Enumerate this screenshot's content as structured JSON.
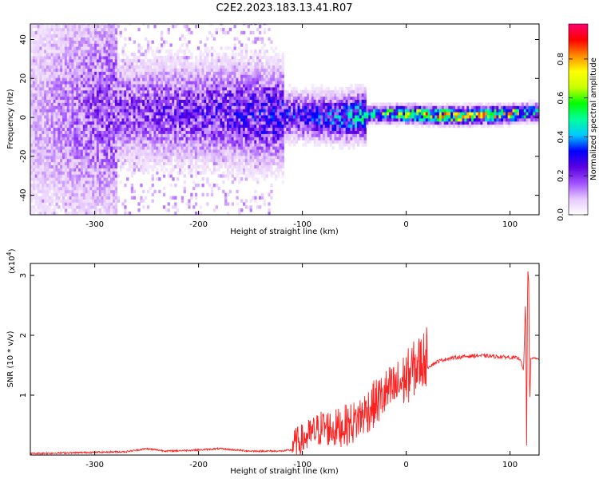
{
  "title": "C2E2.2023.183.13.41.R07",
  "spectrogram": {
    "type": "heatmap",
    "xlabel": "Height of straight line (km)",
    "ylabel": "Frequency (Hz)",
    "xlim": [
      -362,
      128
    ],
    "ylim": [
      -50,
      48
    ],
    "xticks": [
      -300,
      -200,
      -100,
      0,
      100
    ],
    "yticks": [
      -40,
      -20,
      0,
      20,
      40
    ],
    "colorbar": {
      "label": "Normalized spectral amplitude",
      "range": [
        0,
        0.98
      ],
      "ticks": [
        0.0,
        0.2,
        0.4,
        0.6,
        0.8
      ],
      "colors": [
        "#ffffff",
        "#e6c8ff",
        "#a050ff",
        "#5a00e0",
        "#0000ff",
        "#00c8ff",
        "#00ff9c",
        "#00ff00",
        "#c8ff00",
        "#ffff00",
        "#ff8c00",
        "#ff0000",
        "#ff0070"
      ]
    },
    "band": {
      "x": [
        -362,
        -300,
        -200,
        -100,
        -60,
        -30,
        0,
        50,
        100,
        128
      ],
      "center_hz": [
        0,
        3,
        2,
        0,
        -1,
        1,
        1,
        0,
        1,
        2
      ],
      "peak_amplitude": [
        0.1,
        0.2,
        0.25,
        0.32,
        0.4,
        0.55,
        0.75,
        0.85,
        0.7,
        0.5
      ]
    }
  },
  "chart_data": {
    "type": "line",
    "title": "C2E2.2023.183.13.41.R07",
    "xlabel": "Height of straight line (km)",
    "ylabel": "SNR (10 * v/v)",
    "exponent_label": "(x10",
    "exponent_sup": "4",
    "exponent_close": ")",
    "xlim": [
      -362,
      128
    ],
    "ylim": [
      0,
      3.2
    ],
    "xticks": [
      -300,
      -200,
      -100,
      0,
      100
    ],
    "yticks": [
      1,
      2,
      3
    ],
    "series": [
      {
        "color": "#ff2020",
        "x": [
          -362,
          -330,
          -300,
          -270,
          -250,
          -230,
          -200,
          -180,
          -150,
          -120,
          -110,
          -100,
          -90,
          -80,
          -70,
          -60,
          -50,
          -40,
          -30,
          -20,
          -10,
          0,
          10,
          20,
          30,
          40,
          50,
          60,
          70,
          80,
          90,
          100,
          110,
          113,
          115,
          116,
          117,
          118,
          119,
          120,
          122,
          125,
          128
        ],
        "y": [
          0.02,
          0.03,
          0.04,
          0.05,
          0.1,
          0.06,
          0.08,
          0.1,
          0.06,
          0.06,
          0.08,
          0.15,
          0.25,
          0.35,
          0.3,
          0.35,
          0.4,
          0.55,
          0.7,
          0.85,
          0.95,
          1.1,
          1.3,
          1.45,
          1.55,
          1.6,
          1.62,
          1.64,
          1.65,
          1.64,
          1.63,
          1.62,
          1.6,
          1.4,
          2.6,
          0.15,
          3.1,
          2.9,
          0.8,
          1.6,
          1.62,
          1.61,
          1.6
        ]
      }
    ]
  }
}
